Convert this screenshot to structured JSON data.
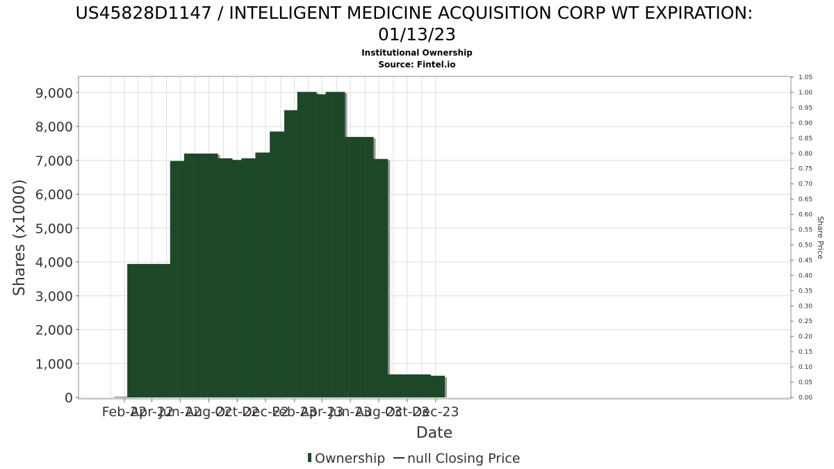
{
  "chart_data": {
    "type": "bar",
    "title_line1": "US45828D1147 / INTELLIGENT MEDICINE ACQUISITION CORP WT EXPIRATION:",
    "title_line2": "01/13/23",
    "subtitle_line1": "Institutional Ownership",
    "subtitle_line2": "Source: Fintel.io",
    "xlabel": "Date",
    "ylabel": "Shares (x1000)",
    "y2label": "Share Price",
    "ylim": [
      0,
      9500
    ],
    "y2lim": [
      0,
      1.05
    ],
    "y_ticks": [
      "0",
      "1,000",
      "2,000",
      "3,000",
      "4,000",
      "5,000",
      "6,000",
      "7,000",
      "8,000",
      "9,000"
    ],
    "y2_ticks": [
      "0.00",
      "0.05",
      "0.10",
      "0.15",
      "0.20",
      "0.25",
      "0.30",
      "0.35",
      "0.40",
      "0.45",
      "0.50",
      "0.55",
      "0.60",
      "0.65",
      "0.70",
      "0.75",
      "0.80",
      "0.85",
      "0.90",
      "0.95",
      "1.00",
      "1.05"
    ],
    "x_ticks": [
      "Feb-22",
      "Apr-22",
      "Jun-22",
      "Aug-22",
      "Oct-22",
      "Dec-22",
      "Feb-23",
      "Apr-23",
      "Jun-23",
      "Aug-23",
      "Oct-23",
      "Dec-23"
    ],
    "grid": true,
    "bar_color": "#1f4d2b",
    "legend_position": "bottom-center",
    "series": [
      {
        "name": "Ownership",
        "dates": [
          "2022-01-31",
          "2022-02-28",
          "2022-03-31",
          "2022-04-30",
          "2022-05-31",
          "2022-06-30",
          "2022-07-31",
          "2022-08-31",
          "2022-09-30",
          "2022-10-31",
          "2022-11-30",
          "2022-12-31",
          "2023-01-31",
          "2023-02-28",
          "2023-03-31",
          "2023-04-30",
          "2023-05-31",
          "2023-06-30",
          "2023-07-31",
          "2023-08-31",
          "2023-09-30",
          "2023-10-31",
          "2023-11-30"
        ],
        "values": [
          15,
          3940,
          3940,
          3940,
          6980,
          7200,
          7200,
          7060,
          7010,
          7060,
          7230,
          7850,
          8480,
          9020,
          8950,
          9020,
          7690,
          7690,
          7040,
          680,
          680,
          680,
          640
        ]
      }
    ],
    "legend": [
      "Ownership",
      "null Closing Price"
    ]
  }
}
